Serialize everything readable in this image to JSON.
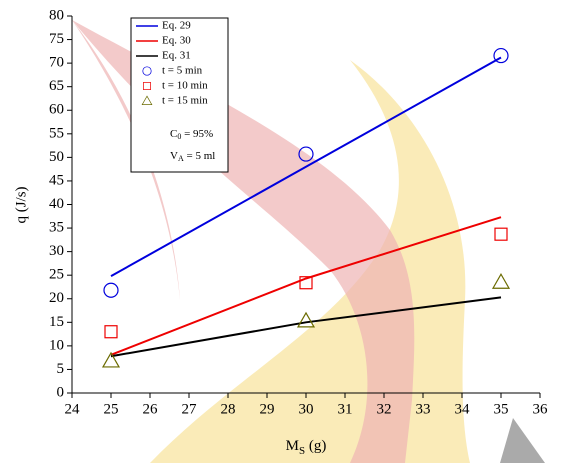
{
  "chart_data": {
    "type": "line",
    "x_label": [
      "M",
      "S",
      " (g)"
    ],
    "y_label": "q (J/s)",
    "x": [
      25,
      30,
      35
    ],
    "series": [
      {
        "name": "Eq. 29",
        "color": "#0000dd",
        "style": "line",
        "values": [
          24.8,
          48,
          71.2
        ]
      },
      {
        "name": "Eq. 30",
        "color": "#ee0000",
        "style": "line",
        "values": [
          8.1,
          24.3,
          37.3
        ]
      },
      {
        "name": "Eq. 31",
        "color": "#000000",
        "style": "line",
        "values": [
          7.8,
          15,
          20.3
        ]
      },
      {
        "name": "t = 5 min",
        "color": "#0000dd",
        "style": "circle",
        "values": [
          21.8,
          50.7,
          71.6
        ]
      },
      {
        "name": "t = 10 min",
        "color": "#ee0000",
        "style": "square",
        "values": [
          13,
          23.4,
          33.7
        ]
      },
      {
        "name": "t = 15 min",
        "color": "#6b6b00",
        "style": "triangle",
        "values": [
          6.8,
          15.3,
          23.5
        ]
      }
    ],
    "annotations": [
      [
        "C",
        "0",
        " = 95%"
      ],
      [
        "V",
        "A",
        " = 5 ml"
      ]
    ],
    "xlim": [
      24,
      36
    ],
    "xticks": [
      24,
      25,
      26,
      27,
      28,
      29,
      30,
      31,
      32,
      33,
      34,
      35,
      36
    ],
    "ylim": [
      0,
      80
    ],
    "yticks": [
      0,
      5,
      10,
      15,
      20,
      25,
      30,
      35,
      40,
      45,
      50,
      55,
      60,
      65,
      70,
      75,
      80
    ]
  }
}
